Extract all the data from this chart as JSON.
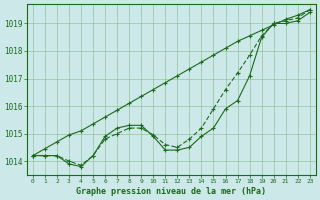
{
  "xlabel": "Graphe pression niveau de la mer (hPa)",
  "background_color": "#cce8e8",
  "line_color": "#1a6b1a",
  "x_ticks": [
    0,
    1,
    2,
    3,
    4,
    5,
    6,
    7,
    8,
    9,
    10,
    11,
    12,
    13,
    14,
    15,
    16,
    17,
    18,
    19,
    20,
    21,
    22,
    23
  ],
  "ylim": [
    1013.5,
    1019.7
  ],
  "y_ticks": [
    1014,
    1015,
    1016,
    1017,
    1018,
    1019
  ],
  "line1": [
    1014.2,
    1014.2,
    1014.2,
    1013.9,
    1013.8,
    1014.2,
    1014.9,
    1015.2,
    1015.3,
    1015.3,
    1014.9,
    1014.4,
    1014.4,
    1014.5,
    1014.9,
    1015.2,
    1015.9,
    1016.2,
    1017.1,
    1018.5,
    1019.0,
    1019.0,
    1019.1,
    1019.4
  ],
  "line2": [
    1014.2,
    1014.2,
    1014.2,
    1014.0,
    1013.85,
    1014.2,
    1014.8,
    1015.0,
    1015.2,
    1015.2,
    1014.95,
    1014.6,
    1014.5,
    1014.8,
    1015.2,
    1015.9,
    1016.6,
    1017.2,
    1017.85,
    1018.55,
    1019.0,
    1019.1,
    1019.2,
    1019.5
  ],
  "line3": [
    1014.2,
    1014.45,
    1014.7,
    1014.95,
    1015.1,
    1015.35,
    1015.6,
    1015.85,
    1016.1,
    1016.35,
    1016.6,
    1016.85,
    1017.1,
    1017.35,
    1017.6,
    1017.85,
    1018.1,
    1018.35,
    1018.55,
    1018.75,
    1018.95,
    1019.15,
    1019.3,
    1019.5
  ]
}
